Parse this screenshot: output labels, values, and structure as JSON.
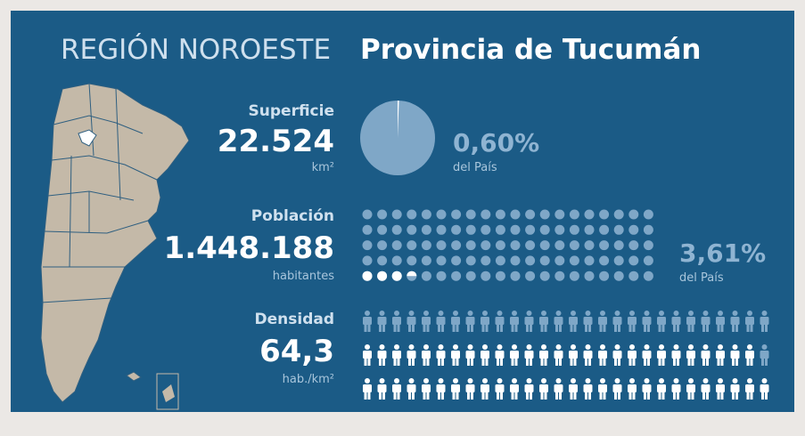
{
  "header": {
    "region": "REGIÓN NOROESTE",
    "province": "Provincia de Tucumán"
  },
  "superficie": {
    "label": "Superficie",
    "value": "22.524",
    "unit": "km²",
    "share": {
      "value": 0.6,
      "label": "0,60%"
    },
    "share_caption": "del País"
  },
  "poblacion": {
    "label": "Población",
    "value": "1.448.188",
    "unit": "habitantes",
    "share": {
      "value": 3.61,
      "label": "3,61%"
    },
    "share_caption": "del País"
  },
  "densidad": {
    "label": "Densidad",
    "value": "64,3",
    "unit": "hab./km²"
  }
}
